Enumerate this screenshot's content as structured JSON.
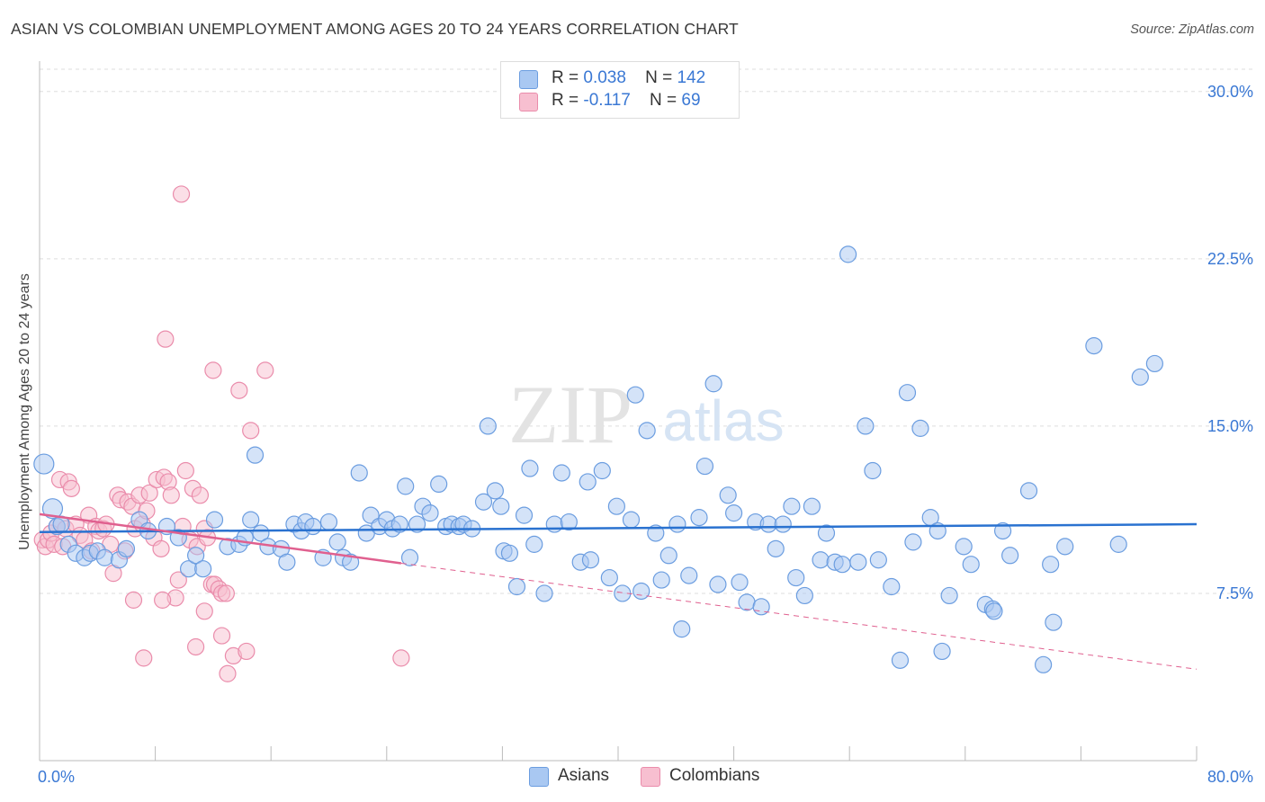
{
  "header": {
    "title": "ASIAN VS COLOMBIAN UNEMPLOYMENT AMONG AGES 20 TO 24 YEARS CORRELATION CHART",
    "source": "Source: ZipAtlas.com"
  },
  "watermark": {
    "zip": "ZIP",
    "atlas": "atlas"
  },
  "legend": {
    "asians": {
      "r_label": "R =",
      "r_value": "0.038",
      "n_label": "N =",
      "n_value": "142"
    },
    "colombians": {
      "r_label": "R =",
      "r_value": "-0.117",
      "n_label": "N =",
      "n_value": "69"
    }
  },
  "bottom_legend": {
    "asians": "Asians",
    "colombians": "Colombians"
  },
  "colors": {
    "asians_fill": "#a9c8f2",
    "asians_stroke": "#6b9de0",
    "asians_line": "#2a72d0",
    "colombians_fill": "#f7bfd0",
    "colombians_stroke": "#ea8cab",
    "colombians_line": "#e0608f",
    "grid": "#dddddd",
    "tick_label": "#3a78d4"
  },
  "chart_data": {
    "type": "scatter",
    "title": "ASIAN VS COLOMBIAN UNEMPLOYMENT AMONG AGES 20 TO 24 YEARS CORRELATION CHART",
    "xlabel": "",
    "ylabel": "Unemployment Among Ages 20 to 24 years",
    "xlim": [
      0,
      80
    ],
    "ylim": [
      0,
      31
    ],
    "x_tick_labels": [
      "0.0%",
      "80.0%"
    ],
    "y_ticks": [
      7.5,
      15.0,
      22.5,
      30.0
    ],
    "y_tick_labels": [
      "7.5%",
      "15.0%",
      "22.5%",
      "30.0%"
    ],
    "grid": true,
    "legend_position": "top-center",
    "series": [
      {
        "name": "Asians",
        "r": 0.038,
        "n": 142,
        "trend": {
          "x": [
            0,
            80
          ],
          "y": [
            10.25,
            10.6
          ],
          "dashed_after": null
        },
        "points": [
          [
            0.3,
            13.3
          ],
          [
            0.9,
            11.3
          ],
          [
            1.2,
            10.5
          ],
          [
            1.5,
            10.6
          ],
          [
            2.0,
            9.7
          ],
          [
            2.5,
            9.3
          ],
          [
            3.1,
            9.1
          ],
          [
            3.5,
            9.3
          ],
          [
            4.0,
            9.4
          ],
          [
            4.5,
            9.1
          ],
          [
            5.5,
            9.0
          ],
          [
            6.0,
            9.5
          ],
          [
            6.9,
            10.8
          ],
          [
            7.5,
            10.3
          ],
          [
            8.8,
            10.5
          ],
          [
            9.6,
            10.0
          ],
          [
            10.3,
            8.6
          ],
          [
            10.8,
            9.2
          ],
          [
            11.3,
            8.6
          ],
          [
            12.1,
            10.8
          ],
          [
            13.0,
            9.6
          ],
          [
            13.8,
            9.7
          ],
          [
            14.2,
            10.0
          ],
          [
            14.6,
            10.8
          ],
          [
            14.9,
            13.7
          ],
          [
            15.3,
            10.2
          ],
          [
            15.8,
            9.6
          ],
          [
            16.7,
            9.5
          ],
          [
            17.1,
            8.9
          ],
          [
            17.6,
            10.6
          ],
          [
            18.1,
            10.3
          ],
          [
            18.4,
            10.7
          ],
          [
            18.9,
            10.5
          ],
          [
            19.6,
            9.1
          ],
          [
            20.0,
            10.7
          ],
          [
            20.6,
            9.8
          ],
          [
            21.0,
            9.1
          ],
          [
            21.5,
            8.9
          ],
          [
            22.1,
            12.9
          ],
          [
            22.6,
            10.2
          ],
          [
            22.9,
            11.0
          ],
          [
            23.5,
            10.5
          ],
          [
            24.0,
            10.8
          ],
          [
            24.4,
            10.4
          ],
          [
            24.9,
            10.6
          ],
          [
            25.3,
            12.3
          ],
          [
            25.6,
            9.1
          ],
          [
            26.1,
            10.6
          ],
          [
            26.5,
            11.4
          ],
          [
            27.0,
            11.1
          ],
          [
            27.6,
            12.4
          ],
          [
            28.1,
            10.5
          ],
          [
            28.5,
            10.6
          ],
          [
            29.0,
            10.5
          ],
          [
            29.3,
            10.6
          ],
          [
            29.9,
            10.4
          ],
          [
            30.7,
            11.6
          ],
          [
            31.0,
            15.0
          ],
          [
            31.5,
            12.1
          ],
          [
            31.9,
            11.4
          ],
          [
            32.1,
            9.4
          ],
          [
            32.5,
            9.3
          ],
          [
            33.0,
            7.8
          ],
          [
            33.5,
            11.0
          ],
          [
            33.9,
            13.1
          ],
          [
            34.2,
            9.7
          ],
          [
            34.9,
            7.5
          ],
          [
            35.6,
            10.6
          ],
          [
            36.1,
            12.9
          ],
          [
            36.6,
            10.7
          ],
          [
            37.4,
            8.9
          ],
          [
            37.9,
            12.5
          ],
          [
            38.1,
            9.0
          ],
          [
            38.9,
            13.0
          ],
          [
            39.4,
            8.2
          ],
          [
            39.9,
            11.4
          ],
          [
            40.3,
            7.5
          ],
          [
            40.9,
            10.8
          ],
          [
            41.2,
            16.4
          ],
          [
            41.6,
            7.6
          ],
          [
            42.0,
            14.8
          ],
          [
            42.6,
            10.2
          ],
          [
            43.0,
            8.1
          ],
          [
            43.5,
            9.2
          ],
          [
            44.1,
            10.6
          ],
          [
            44.4,
            5.9
          ],
          [
            44.9,
            8.3
          ],
          [
            45.6,
            10.9
          ],
          [
            46.0,
            13.2
          ],
          [
            46.6,
            16.9
          ],
          [
            46.9,
            7.9
          ],
          [
            47.6,
            11.9
          ],
          [
            48.0,
            11.1
          ],
          [
            48.4,
            8.0
          ],
          [
            48.9,
            7.1
          ],
          [
            49.5,
            10.7
          ],
          [
            49.9,
            6.9
          ],
          [
            50.4,
            10.6
          ],
          [
            50.9,
            9.5
          ],
          [
            51.4,
            10.6
          ],
          [
            52.0,
            11.4
          ],
          [
            52.3,
            8.2
          ],
          [
            52.9,
            7.4
          ],
          [
            53.4,
            11.4
          ],
          [
            54.0,
            9.0
          ],
          [
            54.4,
            10.2
          ],
          [
            55.0,
            8.9
          ],
          [
            55.5,
            8.8
          ],
          [
            55.9,
            22.7
          ],
          [
            56.6,
            8.9
          ],
          [
            57.1,
            15.0
          ],
          [
            57.6,
            13.0
          ],
          [
            58.0,
            9.0
          ],
          [
            58.9,
            7.8
          ],
          [
            59.5,
            4.5
          ],
          [
            60.0,
            16.5
          ],
          [
            60.4,
            9.8
          ],
          [
            60.9,
            14.9
          ],
          [
            61.6,
            10.9
          ],
          [
            62.1,
            10.3
          ],
          [
            62.4,
            4.9
          ],
          [
            62.9,
            7.4
          ],
          [
            63.9,
            9.6
          ],
          [
            64.4,
            8.8
          ],
          [
            65.4,
            7.0
          ],
          [
            65.9,
            6.8
          ],
          [
            66.0,
            6.7
          ],
          [
            66.6,
            10.3
          ],
          [
            67.1,
            9.2
          ],
          [
            68.4,
            12.1
          ],
          [
            69.4,
            4.3
          ],
          [
            69.9,
            8.8
          ],
          [
            70.1,
            6.2
          ],
          [
            70.9,
            9.6
          ],
          [
            72.9,
            18.6
          ],
          [
            74.6,
            9.7
          ],
          [
            76.1,
            17.2
          ],
          [
            77.1,
            17.8
          ]
        ]
      },
      {
        "name": "Colombians",
        "r": -0.117,
        "n": 69,
        "trend": {
          "x": [
            0,
            25,
            80
          ],
          "y": [
            11.05,
            8.85,
            4.1
          ],
          "dashed_after": 25
        },
        "points": [
          [
            0.2,
            9.9
          ],
          [
            0.4,
            9.6
          ],
          [
            0.6,
            9.9
          ],
          [
            0.8,
            10.2
          ],
          [
            1.0,
            9.7
          ],
          [
            1.2,
            10.5
          ],
          [
            1.4,
            12.6
          ],
          [
            1.6,
            9.6
          ],
          [
            1.8,
            10.4
          ],
          [
            2.0,
            12.5
          ],
          [
            2.2,
            12.2
          ],
          [
            2.5,
            10.6
          ],
          [
            2.8,
            10.1
          ],
          [
            3.1,
            9.9
          ],
          [
            3.4,
            11.0
          ],
          [
            3.6,
            9.4
          ],
          [
            3.9,
            10.5
          ],
          [
            4.1,
            10.3
          ],
          [
            4.4,
            10.4
          ],
          [
            4.6,
            10.6
          ],
          [
            4.9,
            9.7
          ],
          [
            5.1,
            8.4
          ],
          [
            5.4,
            11.9
          ],
          [
            5.6,
            11.7
          ],
          [
            5.9,
            9.4
          ],
          [
            6.1,
            11.6
          ],
          [
            6.4,
            11.4
          ],
          [
            6.6,
            10.4
          ],
          [
            6.9,
            11.9
          ],
          [
            7.1,
            10.6
          ],
          [
            7.4,
            11.2
          ],
          [
            7.6,
            12.0
          ],
          [
            7.9,
            10.0
          ],
          [
            8.1,
            12.6
          ],
          [
            8.4,
            9.5
          ],
          [
            8.6,
            12.7
          ],
          [
            8.9,
            12.5
          ],
          [
            9.1,
            11.9
          ],
          [
            9.4,
            7.3
          ],
          [
            9.6,
            8.1
          ],
          [
            9.9,
            10.5
          ],
          [
            10.1,
            13.0
          ],
          [
            10.4,
            9.9
          ],
          [
            10.6,
            12.2
          ],
          [
            10.9,
            9.6
          ],
          [
            11.1,
            11.9
          ],
          [
            11.4,
            10.4
          ],
          [
            11.6,
            10.0
          ],
          [
            11.9,
            7.9
          ],
          [
            12.1,
            7.9
          ],
          [
            12.4,
            7.7
          ],
          [
            12.6,
            7.5
          ],
          [
            12.9,
            7.5
          ],
          [
            6.5,
            7.2
          ],
          [
            7.2,
            4.6
          ],
          [
            8.5,
            7.2
          ],
          [
            8.7,
            18.9
          ],
          [
            9.8,
            25.4
          ],
          [
            10.8,
            5.1
          ],
          [
            11.4,
            6.7
          ],
          [
            12.0,
            17.5
          ],
          [
            12.6,
            5.6
          ],
          [
            13.0,
            3.9
          ],
          [
            13.4,
            4.7
          ],
          [
            13.8,
            16.6
          ],
          [
            14.3,
            4.9
          ],
          [
            14.6,
            14.8
          ],
          [
            15.6,
            17.5
          ],
          [
            25.0,
            4.6
          ]
        ]
      }
    ]
  }
}
